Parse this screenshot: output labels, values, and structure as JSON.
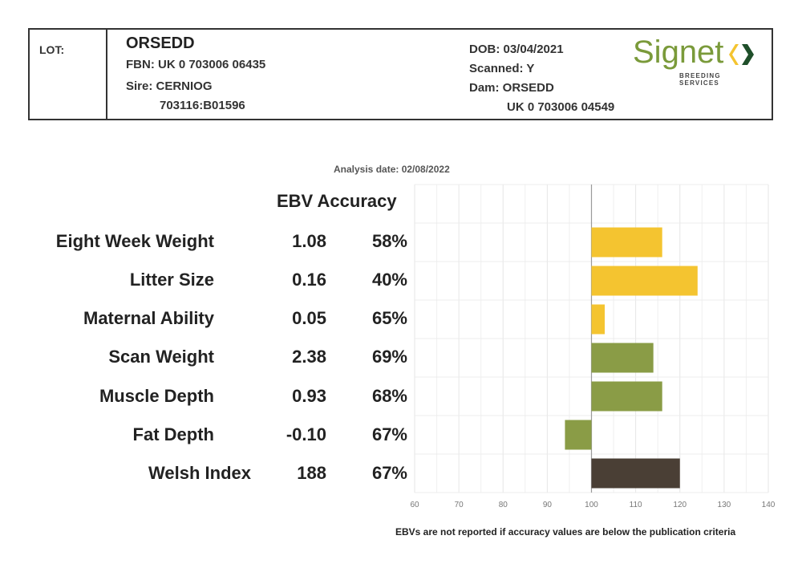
{
  "header": {
    "lot_label": "LOT:",
    "name": "ORSEDD",
    "fbn": "FBN: UK 0 703006 06435",
    "sire": "Sire: CERNIOG",
    "sire_id": "703116:B01596",
    "dob": "DOB: 03/04/2021",
    "scanned": "Scanned: Y",
    "dam": "Dam: ORSEDD",
    "dam_id": "UK 0 703006 04549"
  },
  "logo": {
    "word": "Signet",
    "sub": "BREEDING SERVICES",
    "colors": {
      "green": "#7a9a3a",
      "yellow": "#f4c430"
    }
  },
  "analysis_date": "Analysis date: 02/08/2022",
  "columns": {
    "ebv_accuracy": "EBV Accuracy"
  },
  "footnote": "EBVs are not reported if accuracy values are below the publication criteria",
  "chart_data": {
    "type": "bar",
    "orientation": "horizontal",
    "baseline": 100,
    "xlim": [
      60,
      140
    ],
    "xticks": [
      60,
      70,
      80,
      90,
      100,
      110,
      120,
      130,
      140
    ],
    "grid": true,
    "categories": [
      "Eight Week Weight",
      "Litter Size",
      "Maternal Ability",
      "Scan Weight",
      "Muscle Depth",
      "Fat Depth",
      "Welsh Index"
    ],
    "ebv": [
      "1.08",
      "0.16",
      "0.05",
      "2.38",
      "0.93",
      "-0.10",
      "188"
    ],
    "accuracy": [
      "58%",
      "40%",
      "65%",
      "69%",
      "68%",
      "67%",
      "67%"
    ],
    "values": [
      116,
      124,
      103,
      114,
      116,
      94,
      120
    ],
    "colors": [
      "#f4c430",
      "#f4c430",
      "#f4c430",
      "#8a9c46",
      "#8a9c46",
      "#8a9c46",
      "#4a3f35"
    ]
  }
}
